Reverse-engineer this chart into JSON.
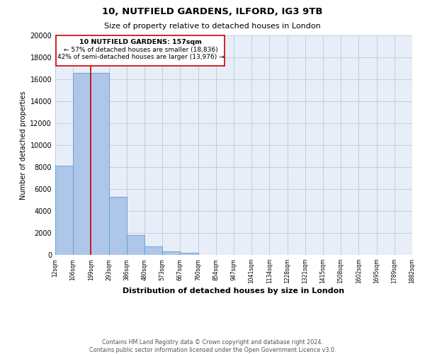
{
  "title1": "10, NUTFIELD GARDENS, ILFORD, IG3 9TB",
  "title2": "Size of property relative to detached houses in London",
  "xlabel": "Distribution of detached houses by size in London",
  "ylabel": "Number of detached properties",
  "bar_values": [
    8100,
    16600,
    16600,
    5300,
    1800,
    750,
    300,
    200,
    0,
    0,
    0,
    0,
    0,
    0,
    0,
    0,
    0,
    0,
    0,
    0
  ],
  "bin_labels": [
    "12sqm",
    "106sqm",
    "199sqm",
    "293sqm",
    "386sqm",
    "480sqm",
    "573sqm",
    "667sqm",
    "760sqm",
    "854sqm",
    "947sqm",
    "1041sqm",
    "1134sqm",
    "1228sqm",
    "1321sqm",
    "1415sqm",
    "1508sqm",
    "1602sqm",
    "1695sqm",
    "1789sqm",
    "1882sqm"
  ],
  "bar_color": "#aec6e8",
  "bar_edge_color": "#5a9fd4",
  "ylim": [
    0,
    20000
  ],
  "yticks": [
    0,
    2000,
    4000,
    6000,
    8000,
    10000,
    12000,
    14000,
    16000,
    18000,
    20000
  ],
  "vline_color": "#cc0000",
  "annotation_title": "10 NUTFIELD GARDENS: 157sqm",
  "annotation_line1": "← 57% of detached houses are smaller (18,836)",
  "annotation_line2": "42% of semi-detached houses are larger (13,976) →",
  "footer1": "Contains HM Land Registry data © Crown copyright and database right 2024.",
  "footer2": "Contains public sector information licensed under the Open Government Licence v3.0.",
  "bg_color": "#ffffff",
  "plot_bg_color": "#e8eef8",
  "grid_color": "#c0cce0"
}
